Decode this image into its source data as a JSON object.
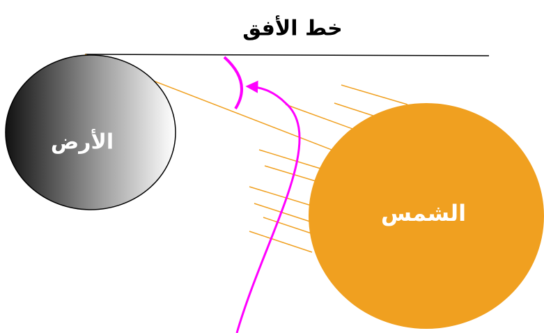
{
  "title": "خط الأفق",
  "earth": {
    "label": "الأرض"
  },
  "sun": {
    "label": "الشمس"
  }
}
